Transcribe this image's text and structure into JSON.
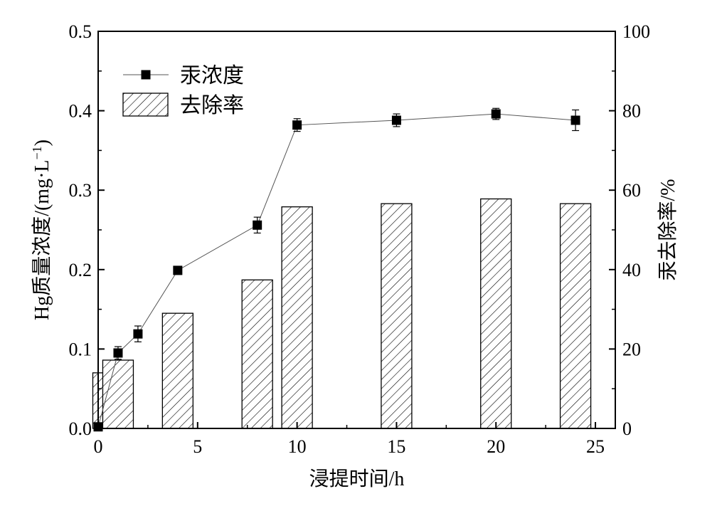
{
  "chart_data": {
    "type": "bar",
    "x_title": "浸提时间/h",
    "y_left_title_main": "Hg质量浓度/(mg·L",
    "y_left_title_sup": "−1",
    "y_left_title_end": ")",
    "y_right_title": "汞去除率/%",
    "xlim": [
      0,
      26
    ],
    "ylim_left": [
      0,
      0.5
    ],
    "ylim_right": [
      0,
      100
    ],
    "x_ticks": [
      0,
      5,
      10,
      15,
      20,
      25
    ],
    "x_tick_labels": [
      "0",
      "5",
      "10",
      "15",
      "20",
      "25"
    ],
    "y_left_ticks": [
      0,
      0.1,
      0.2,
      0.3,
      0.4,
      0.5
    ],
    "y_left_tick_labels": [
      "0.0",
      "0.1",
      "0.2",
      "0.3",
      "0.4",
      "0.5"
    ],
    "y_right_ticks": [
      0,
      20,
      40,
      60,
      80,
      100
    ],
    "y_right_tick_labels": [
      "0",
      "20",
      "40",
      "60",
      "80",
      "100"
    ],
    "grid": false,
    "legend_position": "top-left",
    "series": [
      {
        "name": "汞浓度",
        "kind": "line-marker",
        "axis": "left",
        "color": "#000000",
        "x": [
          0,
          1,
          2,
          4,
          8,
          10,
          15,
          20,
          24
        ],
        "values": [
          0.002,
          0.095,
          0.119,
          0.199,
          0.256,
          0.382,
          0.388,
          0.396,
          0.388
        ],
        "errors": [
          0.001,
          0.008,
          0.01,
          0.005,
          0.01,
          0.008,
          0.008,
          0.007,
          0.013
        ]
      },
      {
        "name": "去除率",
        "kind": "bar",
        "axis": "right",
        "pattern": "diagonal-hatch",
        "x": [
          0.5,
          1,
          4,
          8,
          10,
          15,
          20,
          24
        ],
        "values": [
          14,
          17.2,
          29,
          37.4,
          55.8,
          56.6,
          57.8,
          56.6
        ]
      }
    ]
  }
}
